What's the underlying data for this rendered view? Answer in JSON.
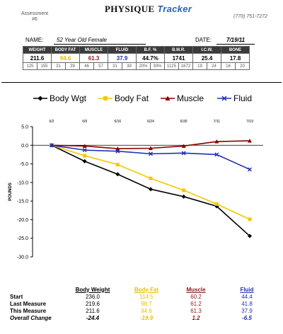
{
  "header": {
    "assessment_label": "Assessment",
    "assessment_number": "#6",
    "logo_part1": "PHYSIQUE",
    "logo_part2": "Tracker",
    "phone": "(770) 751-7272",
    "name_label": "NAME:",
    "name_value": "52 Year Old Female",
    "date_label": "DATE:",
    "date_value": "7/19/11"
  },
  "stats_table": {
    "headers": [
      "WEIGHT",
      "BODY FAT",
      "MUSCLE",
      "FLUID",
      "B.F. %",
      "B.M.R.",
      "I.C.W.",
      "BONE"
    ],
    "values": [
      "211.6",
      "94.6",
      "61.3",
      "37.9",
      "44.7%",
      "1741",
      "25.4",
      "17.8"
    ],
    "value_colors": [
      "#000000",
      "#e8c000",
      "#8b1a1a",
      "#1a2fa8",
      "#000000",
      "#000000",
      "#000000",
      "#000000"
    ],
    "ranges": [
      "125",
      "155",
      "31",
      "39",
      "46",
      "57",
      "31",
      "39",
      "20%",
      "30%",
      "1125",
      "1672",
      "19",
      "24",
      "16",
      "20"
    ]
  },
  "legend": [
    {
      "label": "Body Wgt",
      "color": "#000000",
      "marker": "diamond"
    },
    {
      "label": "Body Fat",
      "color": "#f5c800",
      "marker": "square"
    },
    {
      "label": "Muscle",
      "color": "#8b0000",
      "marker": "triangle"
    },
    {
      "label": "Fluid",
      "color": "#1f2fb0",
      "marker": "x"
    }
  ],
  "chart_data": {
    "type": "line",
    "x": [
      "6/2",
      "6/9",
      "6/16",
      "6/24",
      "6/30",
      "7/11",
      "7/19"
    ],
    "ylabel": "POUNDS",
    "ylim": [
      -30,
      5
    ],
    "yticks": [
      "5.0",
      "0.0",
      "-5.0",
      "-10.0",
      "-15.0",
      "-20.0",
      "-25.0",
      "-30.0"
    ],
    "grid": false,
    "series": [
      {
        "name": "Body Wgt",
        "color": "#000000",
        "marker": "diamond",
        "values": [
          0,
          -4.3,
          -7.8,
          -11.8,
          -13.8,
          -16.4,
          -24.4
        ]
      },
      {
        "name": "Body Fat",
        "color": "#f5c800",
        "marker": "square",
        "values": [
          0,
          -2.8,
          -5.2,
          -8.9,
          -12.1,
          -15.8,
          -19.9
        ]
      },
      {
        "name": "Muscle",
        "color": "#8b0000",
        "marker": "triangle",
        "values": [
          0,
          -0.2,
          -0.9,
          -0.8,
          -0.2,
          1.0,
          1.2
        ]
      },
      {
        "name": "Fluid",
        "color": "#1f2fb0",
        "marker": "x",
        "values": [
          0,
          -1.3,
          -1.6,
          -2.3,
          -2.1,
          -2.5,
          -6.5
        ]
      }
    ]
  },
  "summary": {
    "columns": [
      {
        "label": "Body Weight",
        "color": "#000000"
      },
      {
        "label": "Body Fat",
        "color": "#e8c000"
      },
      {
        "label": "Muscle",
        "color": "#8b1a1a"
      },
      {
        "label": "Fluid",
        "color": "#1f2fb0"
      }
    ],
    "rows": [
      {
        "label": "Start",
        "values": [
          "236.0",
          "114.5",
          "60.2",
          "44.4"
        ]
      },
      {
        "label": "Last Measure",
        "values": [
          "219.6",
          "98.7",
          "61.2",
          "41.8"
        ]
      },
      {
        "label": "This Measure",
        "values": [
          "211.6",
          "94.6",
          "61.3",
          "37.9"
        ]
      }
    ],
    "total": {
      "label": "Overall Change",
      "values": [
        "-24.4",
        "-19.9",
        "1.2",
        "-6.5"
      ]
    }
  }
}
